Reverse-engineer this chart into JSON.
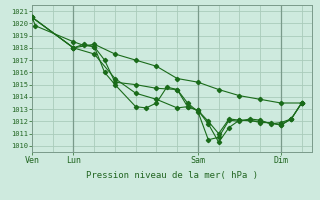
{
  "bg_color": "#ceeade",
  "grid_color": "#aaccbb",
  "line_color": "#1a6b1a",
  "title": "Pression niveau de la mer( hPa )",
  "ylabel_ticks": [
    1010,
    1011,
    1012,
    1013,
    1014,
    1015,
    1016,
    1017,
    1018,
    1019,
    1020,
    1021
  ],
  "xtick_labels": [
    "Ven",
    "Lun",
    "Sam",
    "Dim"
  ],
  "xtick_positions": [
    0,
    24,
    96,
    144
  ],
  "series": [
    [
      0,
      1020.5,
      2,
      1019.8,
      24,
      1018.5,
      30,
      1018.2,
      36,
      1018.1,
      42,
      1017.0,
      48,
      1015.2,
      60,
      1015.0,
      72,
      1014.7,
      84,
      1014.6,
      90,
      1013.2,
      96,
      1012.9,
      102,
      1011.8,
      108,
      1010.3,
      114,
      1011.5,
      120,
      1012.1,
      126,
      1012.1,
      132,
      1011.9,
      138,
      1011.9,
      144,
      1011.7,
      150,
      1012.2,
      156,
      1013.5
    ],
    [
      0,
      1020.5,
      24,
      1018.0,
      36,
      1018.3,
      48,
      1017.5,
      60,
      1017.0,
      72,
      1016.5,
      84,
      1015.5,
      96,
      1015.2,
      108,
      1014.6,
      120,
      1014.1,
      132,
      1013.8,
      144,
      1013.5,
      156,
      1013.5
    ],
    [
      0,
      1020.5,
      24,
      1018.0,
      30,
      1018.3,
      36,
      1018.1,
      42,
      1016.0,
      48,
      1015.0,
      60,
      1013.2,
      66,
      1013.1,
      72,
      1013.5,
      78,
      1014.8,
      84,
      1014.6,
      90,
      1013.5,
      96,
      1012.8,
      102,
      1010.5,
      108,
      1010.7,
      114,
      1012.1,
      120,
      1012.0,
      126,
      1012.2,
      132,
      1012.1,
      138,
      1011.8,
      144,
      1011.9,
      150,
      1012.2,
      156,
      1013.5
    ],
    [
      0,
      1020.5,
      24,
      1018.0,
      36,
      1017.5,
      48,
      1015.5,
      60,
      1014.3,
      72,
      1013.8,
      84,
      1013.1,
      90,
      1013.2,
      96,
      1012.9,
      102,
      1012.0,
      108,
      1011.0,
      114,
      1012.2,
      120,
      1012.1,
      132,
      1012.0,
      144,
      1011.7,
      150,
      1012.2,
      156,
      1013.5
    ]
  ],
  "vlines": [
    24,
    96,
    144
  ],
  "xlim": [
    0,
    162
  ],
  "ylim": [
    1009.5,
    1021.5
  ],
  "figsize": [
    3.2,
    2.0
  ],
  "dpi": 100
}
